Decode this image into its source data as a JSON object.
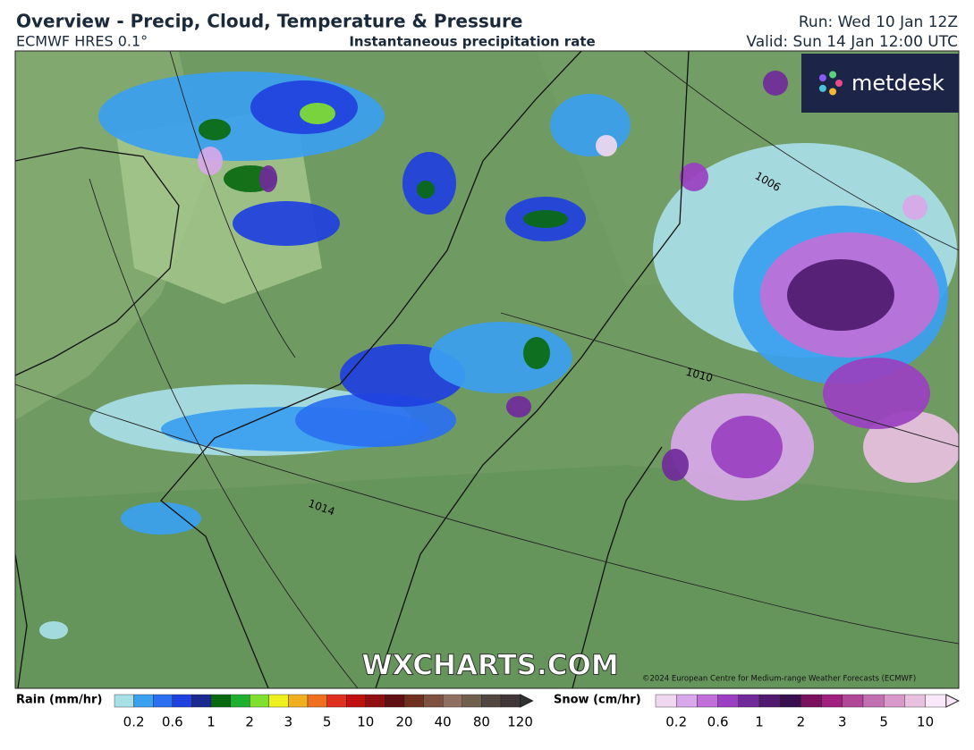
{
  "header": {
    "title": "Overview - Precip, Cloud, Temperature & Pressure",
    "model": "ECMWF HRES 0.1°",
    "subtitle": "Instantaneous precipitation rate",
    "run": "Run: Wed 10 Jan 12Z",
    "valid": "Valid: Sun 14 Jan 12:00 UTC"
  },
  "map": {
    "isobars": [
      "1006",
      "1010",
      "1014"
    ],
    "watermark": "WXCHARTS.COM",
    "copyright": "©2024 European Centre for Medium-range Weather Forecasts (ECMWF)",
    "logo": "metdesk"
  },
  "legend": {
    "rain": {
      "title": "Rain (mm/hr)",
      "colors": [
        "#a8e0e8",
        "#3aa0f0",
        "#2a70f0",
        "#2040e0",
        "#1a2a90",
        "#0a6a10",
        "#20b030",
        "#80e030",
        "#f0f020",
        "#f0b020",
        "#f07020",
        "#e03020",
        "#c01010",
        "#901010",
        "#601010",
        "#703020",
        "#805040",
        "#907060",
        "#706050",
        "#504840",
        "#403838"
      ],
      "ticks": [
        "0.2",
        "0.6",
        "1",
        "2",
        "3",
        "5",
        "10",
        "20",
        "40",
        "80",
        "120"
      ]
    },
    "snow": {
      "title": "Snow (cm/hr)",
      "colors": [
        "#f0d8f0",
        "#d8a8e8",
        "#c070d8",
        "#9a40c0",
        "#702a9a",
        "#501a70",
        "#380f50",
        "#7a1060",
        "#a02080",
        "#b04898",
        "#c070b0",
        "#d898c8",
        "#e8c0e0",
        "#f8e8f8"
      ],
      "ticks": [
        "0.2",
        "0.6",
        "1",
        "2",
        "3",
        "5",
        "10"
      ]
    }
  }
}
